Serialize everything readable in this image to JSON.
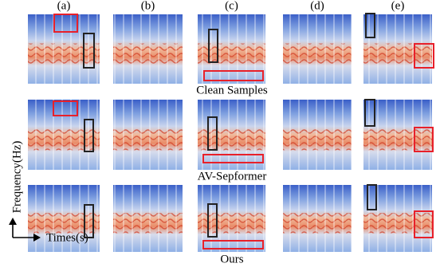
{
  "columns": [
    "(a)",
    "(b)",
    "(c)",
    "(d)",
    "(e)"
  ],
  "rows": [
    {
      "label": "Clean Samples"
    },
    {
      "label": "AV-Sepformer"
    },
    {
      "label": "Ours"
    }
  ],
  "axes": {
    "y_label": "Frequency(Hz)",
    "x_label": "Times(s)"
  }
}
